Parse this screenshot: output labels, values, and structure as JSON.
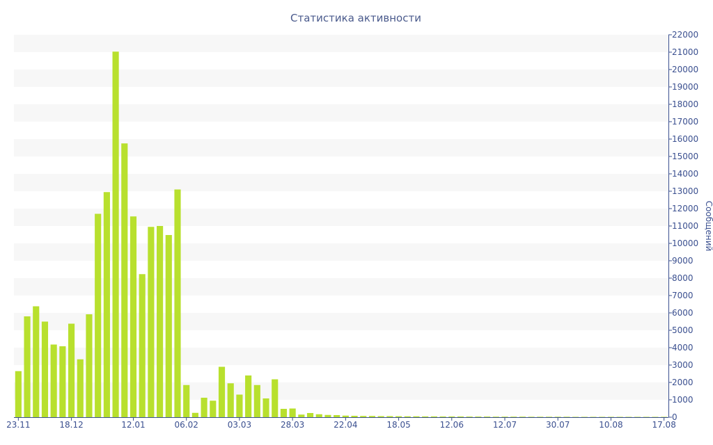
{
  "chart_data": {
    "type": "bar",
    "title": "Статистика активности",
    "ylabel": "Сообщений",
    "ylim": [
      0,
      22000
    ],
    "y_ticks": [
      0,
      1000,
      2000,
      3000,
      4000,
      5000,
      6000,
      7000,
      8000,
      9000,
      10000,
      11000,
      12000,
      13000,
      14000,
      15000,
      16000,
      17000,
      18000,
      19000,
      20000,
      21000,
      22000
    ],
    "y_axis_position": "right",
    "x_tick_labels": [
      {
        "index": 0,
        "label": "23.11"
      },
      {
        "index": 6,
        "label": "18.12"
      },
      {
        "index": 13,
        "label": "12.01"
      },
      {
        "index": 19,
        "label": "06.02"
      },
      {
        "index": 25,
        "label": "03.03"
      },
      {
        "index": 31,
        "label": "28.03"
      },
      {
        "index": 37,
        "label": "22.04"
      },
      {
        "index": 43,
        "label": "18.05"
      },
      {
        "index": 49,
        "label": "12.06"
      },
      {
        "index": 55,
        "label": "12.07"
      },
      {
        "index": 61,
        "label": "30.07"
      },
      {
        "index": 67,
        "label": "10.08"
      },
      {
        "index": 73,
        "label": "17.08"
      }
    ],
    "values": [
      2650,
      5800,
      6380,
      5500,
      4180,
      4080,
      5380,
      3330,
      5920,
      11700,
      12950,
      21030,
      15750,
      11550,
      8230,
      10950,
      11000,
      10480,
      13100,
      1850,
      250,
      1120,
      950,
      2900,
      1950,
      1300,
      2400,
      1850,
      1080,
      2180,
      480,
      500,
      150,
      240,
      170,
      130,
      120,
      90,
      80,
      70,
      70,
      60,
      60,
      55,
      50,
      50,
      45,
      45,
      40,
      40,
      40,
      35,
      35,
      35,
      30,
      30,
      30,
      30,
      25,
      25,
      25,
      25,
      25,
      20,
      20,
      20,
      20,
      20,
      20,
      20,
      20,
      20,
      20,
      20
    ],
    "bar_color": "#b8e02e",
    "grid": true,
    "legend": "none"
  }
}
